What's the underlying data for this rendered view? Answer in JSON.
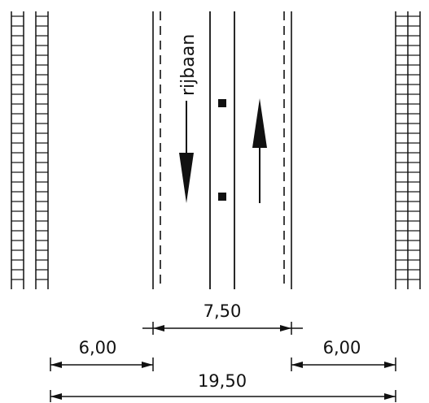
{
  "road_label": "rijbaan",
  "dimensions": {
    "carriageway": "7,50",
    "side_left": "6,00",
    "side_right": "6,00",
    "total": "19,50"
  },
  "colors": {
    "ink": "#111111",
    "background": "#ffffff"
  },
  "symbols": {
    "median_markers": "square-marker",
    "traffic_direction_left": "arrow-down-icon",
    "traffic_direction_right": "arrow-up-icon",
    "facade_pattern": "building-facade-hatch"
  }
}
